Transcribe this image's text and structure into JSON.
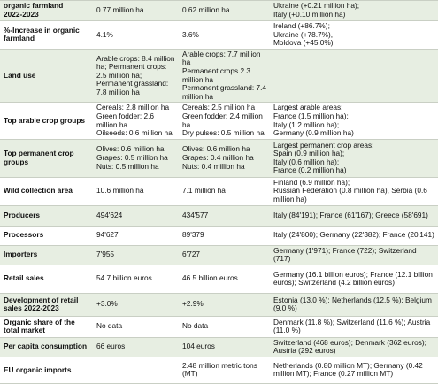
{
  "table": {
    "rows": [
      {
        "label": "organic farmland\n2022-2023",
        "cells": [
          "0.77 million ha",
          "0.62 million ha",
          "Ukraine (+0.21 million ha);\nItaly (+0.10 million ha)"
        ]
      },
      {
        "label": "%-Increase in organic farmland",
        "cells": [
          "4.1%",
          "3.6%",
          "Ireland (+86.7%);\nUkraine (+78.7%),\nMoldova (+45.0%)"
        ]
      },
      {
        "label": "Land use",
        "cells": [
          "Arable crops: 8.4 million ha; Permanent crops: 2.5 million ha; Permanent grassland: 7.8 million ha",
          "Arable crops: 7.7 million ha\nPermanent crops 2.3 million ha\nPermanent grassland: 7.4 million ha",
          null
        ]
      },
      {
        "label": "Top arable crop groups",
        "cells": [
          "Cereals: 2.8 million ha\nGreen fodder: 2.6 million ha\nOilseeds: 0.6 million ha",
          "Cereals: 2.5 million ha\nGreen fodder: 2.4 million ha\nDry pulses: 0.5 million ha",
          "Largest arable areas:\nFrance (1.5 million ha);\nItaly (1.2 million ha);\nGermany (0.9 million ha)"
        ]
      },
      {
        "label": "Top permanent crop groups",
        "cells": [
          "Olives: 0.6 million ha\nGrapes: 0.5 million ha\nNuts: 0.5 million ha",
          "Olives: 0.6 million ha\nGrapes: 0.4 million ha\nNuts: 0.4 million ha",
          "Largest permanent crop areas:\nSpain (0.9 million ha);\nItaly (0.6 million ha);\nFrance (0.2 million ha)"
        ]
      },
      {
        "label": "Wild collection area",
        "cells": [
          "10.6 million ha",
          "7.1 million ha",
          "Finland (6.9 million ha);\nRussian Federation (0.8 million ha), Serbia (0.6 million ha)"
        ]
      },
      {
        "label": "Producers",
        "cells": [
          "494'624",
          "434'577",
          "Italy (84'191); France (61'167); Greece (58'691)"
        ]
      },
      {
        "label": "Processors",
        "cells": [
          "94'627",
          "89'379",
          "Italy (24'800); Germany (22'382); France (20'141)"
        ]
      },
      {
        "label": "Importers",
        "cells": [
          "7'955",
          "6'727",
          "Germany (1'971); France (722); Switzerland (717)"
        ]
      },
      {
        "label": "Retail sales",
        "cells": [
          "54.7 billion euros",
          "46.5 billion euros",
          "Germany (16.1 billion euros); France (12.1 billion euros); Switzerland (4.2 billion euros)"
        ]
      },
      {
        "label": "Development of retail sales 2022-2023",
        "cells": [
          "+3.0%",
          "+2.9%",
          "Estonia (13.0 %); Netherlands (12.5 %); Belgium (9.0 %)"
        ]
      },
      {
        "label": "Organic share of the total market",
        "cells": [
          "No data",
          "No data",
          "Denmark (11.8 %); Switzerland (11.6 %); Austria (11.0 %)"
        ]
      },
      {
        "label": "Per capita consumption",
        "cells": [
          "66 euros",
          "104 euros",
          "Switzerland (468 euros); Denmark (362 euros); Austria (292 euros)"
        ]
      },
      {
        "label": "EU organic imports",
        "cells": [
          null,
          "2.48 million metric tons (MT)",
          "Netherlands (0.80 million MT); Germany (0.42 million MT); France (0.27 million MT)"
        ]
      }
    ]
  }
}
